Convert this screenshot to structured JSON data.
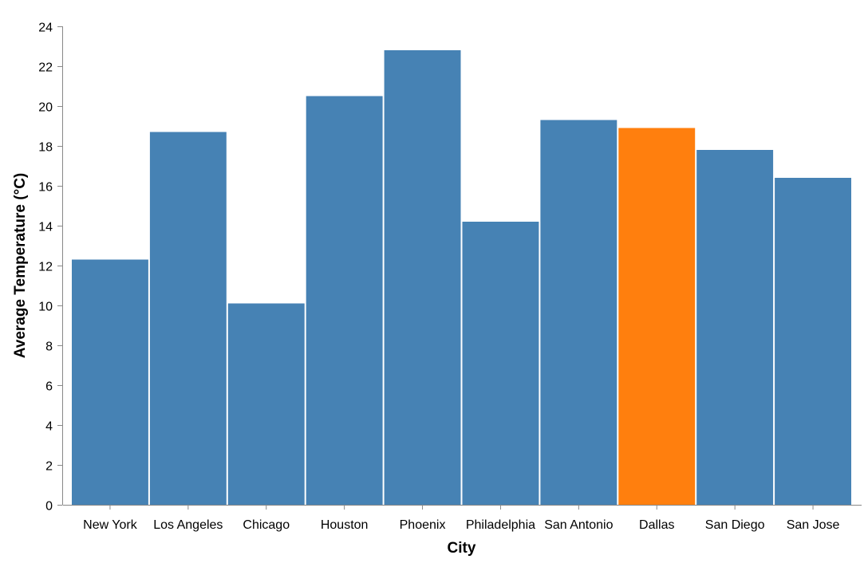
{
  "chart_data": {
    "type": "bar",
    "categories": [
      "New York",
      "Los Angeles",
      "Chicago",
      "Houston",
      "Phoenix",
      "Philadelphia",
      "San Antonio",
      "Dallas",
      "San Diego",
      "San Jose"
    ],
    "values": [
      12.3,
      18.7,
      10.1,
      20.5,
      22.8,
      14.2,
      19.3,
      18.9,
      17.8,
      16.4
    ],
    "highlight": "Dallas",
    "xlabel": "City",
    "ylabel": "Average Temperature (°C)",
    "ylim": [
      0,
      24
    ],
    "yticks": [
      0,
      2,
      4,
      6,
      8,
      10,
      12,
      14,
      16,
      18,
      20,
      22,
      24
    ],
    "grid": false,
    "colors": {
      "bar": "#4682b4",
      "highlight": "#ff7f0e",
      "axis": "#888888"
    }
  }
}
